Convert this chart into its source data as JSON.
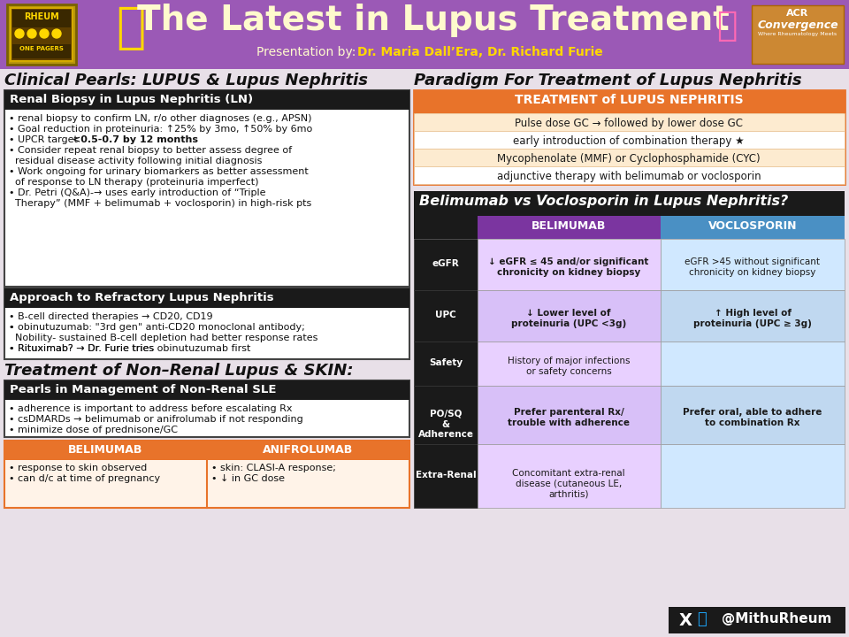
{
  "header_bg": "#9B59B6",
  "bg_color": "#E8E0E8",
  "header_title": "The Latest in Lupus Treatment",
  "header_subtitle_normal": "Presentation by: ",
  "header_subtitle_bold": "Dr. Maria Dall’Era, Dr. Richard Furie",
  "left_title": "Clinical Pearls: LUPUS & Lupus Nephritis",
  "right_title": "Paradigm For Treatment of Lupus Nephritis",
  "box1_title": "Renal Biopsy in Lupus Nephritis (LN)",
  "box1_bullets": [
    "• renal biopsy to confirm LN, r/o other diagnoses (e.g., APSN)",
    "• Goal reduction in proteinuria: ↑25% by 3mo, ↑50% by 6mo",
    "• UPCR target <0.5-0.7 by 12 months",
    "• Consider repeat renal biopsy to better assess degree of",
    "  residual disease activity following initial diagnosis",
    "• Work ongoing for urinary biomarkers as better assessment",
    "  of response to LN therapy (proteinuria imperfect)",
    "• Dr. Petri (Q&A)-→ uses early introduction of “Triple",
    "  Therapy” (MMF + belimumab + voclosporin) in high-risk pts"
  ],
  "box2_title": "Approach to Refractory Lupus Nephritis",
  "box2_bullets": [
    "• B-cell directed therapies → CD20, CD19",
    "• obinutuzumab: \"3rd gen\" anti-CD20 monoclonal antibody;",
    "  Nobility- sustained B-cell depletion had better response rates",
    "• Rituximab? → Dr. Furie tries obinutuzumab first"
  ],
  "nonrenal_title": "Treatment of Non–Renal Lupus & SKIN:",
  "box3_title": "Pearls in Management of Non-Renal SLE",
  "box3_bullets": [
    "• adherence is important to address before escalating Rx",
    "• csDMARDs → belimumab or anifrolumab if not responding",
    "• minimize dose of prednisone/GC"
  ],
  "comp_left_title": "BELIMUMAB",
  "comp_right_title": "ANIFROLUMAB",
  "comp_header_bg": "#E8732A",
  "comp_body_bg": "#FFF3E8",
  "comp_left_bullets": [
    "• response to skin observed",
    "• can d/c at time of pregnancy"
  ],
  "comp_right_bullets": [
    "• skin: CLASI-A response;",
    "• ↓ in GC dose"
  ],
  "treat_title": "TREATMENT of LUPUS NEPHRITIS",
  "treat_title_bg": "#E8732A",
  "treat_rows": [
    {
      "text": "Pulse dose GC → followed by lower dose GC",
      "bold_parts": [
        "Pulse dose GC",
        "lower dose GC"
      ],
      "bg": "#FDEBD0"
    },
    {
      "text": "early introduction of combination therapy ★",
      "bold_parts": [
        "combination"
      ],
      "bg": "#FFFFFF"
    },
    {
      "text": "Mycophenolate (MMF) or Cyclophosphamide (CYC)",
      "bold_parts": [
        "Mycophenolate (MMF)",
        "Cyclophosphamide (CYC)"
      ],
      "bg": "#FDEBD0"
    },
    {
      "text": "adjunctive therapy with belimumab or voclosporin",
      "bold_parts": [
        "belimumab",
        "voclosporin"
      ],
      "bg": "#FFFFFF"
    }
  ],
  "voc_title": "Belimumab vs Voclosporin in Lupus Nephritis?",
  "voc_title_bg": "#1a1a1a",
  "voc_title_color": "#FFFFFF",
  "voc_col1_header": "BELIMUMAB",
  "voc_col1_header_bg": "#7B35A0",
  "voc_col2_header": "VOCLOSPORIN",
  "voc_col2_header_bg": "#4A90C4",
  "voc_rows": [
    {
      "label": "eGFR",
      "col1": "↓ eGFR ≤ 45 and/or significant\nchronicity on kidney biopsy",
      "col1_bold": true,
      "col1_bg": "#E8D0FF",
      "col2": "eGFR >45 without significant\nchronicity on kidney biopsy",
      "col2_bold": false,
      "col2_bg": "#D0E8FF"
    },
    {
      "label": "UPC",
      "col1": "↓ Lower level of\nproteinuria (UPC <3g)",
      "col1_bold": true,
      "col1_bg": "#D8C0F8",
      "col2": "↑ High level of\nproteinuria (UPC ≥ 3g)",
      "col2_bold": true,
      "col2_bg": "#C0D8F0"
    },
    {
      "label": "Safety",
      "col1": "History of major infections\nor safety concerns",
      "col1_bold": false,
      "col1_bg": "#E8D0FF",
      "col2": "",
      "col2_bold": false,
      "col2_bg": "#D0E8FF"
    },
    {
      "label": "PO/SQ\n&\nAdherence",
      "col1": "Prefer parenteral Rx/\ntrouble with adherence",
      "col1_bold": true,
      "col1_bg": "#D8C0F8",
      "col2": "Prefer oral, able to adhere\nto combination Rx",
      "col2_bold": true,
      "col2_bg": "#C0D8F0"
    },
    {
      "label": "Extra-Renal",
      "col1": "Concomitant extra-renal\ndisease (cutaneous LE,\narthritis)",
      "col1_bold": false,
      "col1_bg": "#E8D0FF",
      "col2": "",
      "col2_bold": false,
      "col2_bg": "#D0E8FF"
    }
  ]
}
